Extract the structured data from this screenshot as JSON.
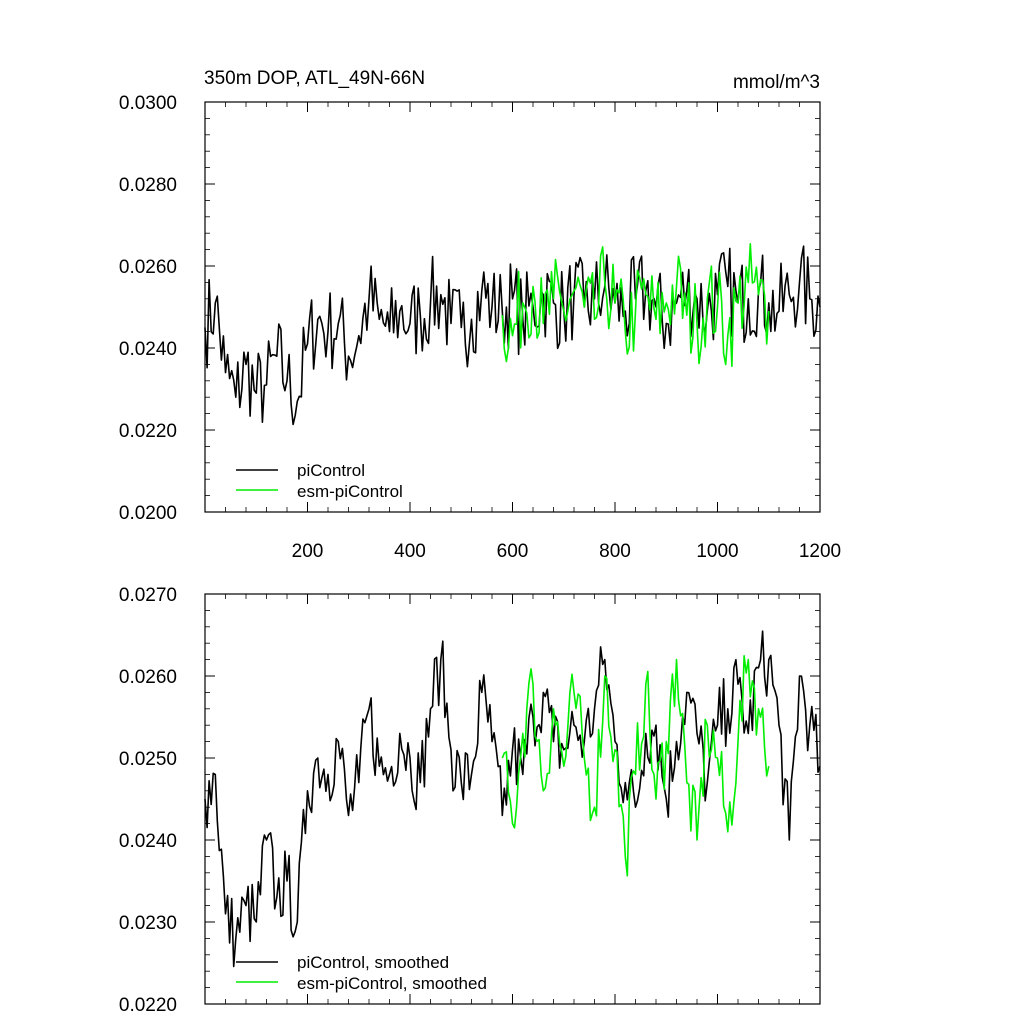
{
  "chart_data": [
    {
      "type": "line",
      "title": "350m DOP, ATL_49N-66N",
      "units": "mmol/m^3",
      "xlim": [
        0,
        1200
      ],
      "ylim": [
        0.02,
        0.03
      ],
      "xticks": [
        200,
        400,
        600,
        800,
        1000,
        1200
      ],
      "xtick_labels": [
        "200",
        "400",
        "600",
        "800",
        "1000",
        "1200"
      ],
      "yticks": [
        0.02,
        0.022,
        0.024,
        0.026,
        0.028,
        0.03
      ],
      "ytick_labels": [
        "0.0200",
        "0.0220",
        "0.0240",
        "0.0260",
        "0.0280",
        "0.0300"
      ],
      "legend_position": "bottom-left",
      "series": [
        {
          "name": "piControl",
          "color": "#000000",
          "x_start": 0,
          "x_step": 20,
          "values": [
            0.0245,
            0.0251,
            0.0234,
            0.0228,
            0.0236,
            0.0229,
            0.0231,
            0.0238,
            0.0232,
            0.0227,
            0.0241,
            0.0247,
            0.0244,
            0.0246,
            0.0238,
            0.0243,
            0.0252,
            0.0247,
            0.0244,
            0.0249,
            0.0246,
            0.0248,
            0.0251,
            0.0253,
            0.0246,
            0.0245,
            0.0247,
            0.0254,
            0.025,
            0.0249,
            0.0252,
            0.0247,
            0.025,
            0.0253,
            0.0251,
            0.0249,
            0.0253,
            0.025,
            0.0252,
            0.0255,
            0.0251,
            0.0249,
            0.0252,
            0.0254,
            0.025,
            0.0246,
            0.0251,
            0.0254,
            0.0252,
            0.0249,
            0.0253,
            0.0255,
            0.0251,
            0.0252,
            0.0254,
            0.0251,
            0.0249,
            0.0253,
            0.0256,
            0.0252,
            0.025
          ]
        },
        {
          "name": "esm-piControl",
          "color": "#00ee00",
          "x_start": 580,
          "x_step": 20,
          "values": [
            0.0248,
            0.0243,
            0.0251,
            0.0255,
            0.0246,
            0.0252,
            0.0249,
            0.0254,
            0.025,
            0.0247,
            0.0256,
            0.0251,
            0.0244,
            0.0249,
            0.0253,
            0.0247,
            0.0251,
            0.0255,
            0.0248,
            0.0246,
            0.0252,
            0.025,
            0.0243,
            0.0251,
            0.0256,
            0.0253,
            0.0249
          ]
        }
      ]
    },
    {
      "type": "line",
      "xlim": [
        0,
        1200
      ],
      "ylim": [
        0.022,
        0.027
      ],
      "yticks": [
        0.022,
        0.023,
        0.024,
        0.025,
        0.026,
        0.027
      ],
      "ytick_labels": [
        "0.0220",
        "0.0230",
        "0.0240",
        "0.0250",
        "0.0260",
        "0.0270"
      ],
      "legend_position": "bottom-left",
      "series": [
        {
          "name": "piControl, smoothed",
          "color": "#000000",
          "x_start": 0,
          "x_step": 20,
          "values": [
            0.0245,
            0.0248,
            0.0231,
            0.0228,
            0.0232,
            0.023,
            0.024,
            0.0233,
            0.0235,
            0.023,
            0.0246,
            0.025,
            0.0248,
            0.0252,
            0.0243,
            0.0247,
            0.0256,
            0.0249,
            0.0248,
            0.0253,
            0.025,
            0.0247,
            0.0256,
            0.0262,
            0.0251,
            0.0247,
            0.0248,
            0.0258,
            0.0252,
            0.0243,
            0.0251,
            0.0248,
            0.0255,
            0.0258,
            0.0252,
            0.0251,
            0.0254,
            0.0252,
            0.0256,
            0.0262,
            0.0252,
            0.0247,
            0.0244,
            0.0253,
            0.0254,
            0.0245,
            0.0252,
            0.0258,
            0.0253,
            0.0247,
            0.0254,
            0.0256,
            0.0259,
            0.0253,
            0.0261,
            0.0262,
            0.0254,
            0.024,
            0.026,
            0.0254,
            0.0249
          ]
        },
        {
          "name": "esm-piControl, smoothed",
          "color": "#00ee00",
          "x_start": 580,
          "x_step": 20,
          "values": [
            0.025,
            0.0242,
            0.0253,
            0.0259,
            0.0246,
            0.0256,
            0.0249,
            0.0258,
            0.025,
            0.0244,
            0.026,
            0.0251,
            0.0238,
            0.0248,
            0.0259,
            0.0245,
            0.0252,
            0.0262,
            0.0247,
            0.024,
            0.0254,
            0.025,
            0.0241,
            0.0252,
            0.0262,
            0.0256,
            0.0249
          ]
        }
      ]
    }
  ]
}
